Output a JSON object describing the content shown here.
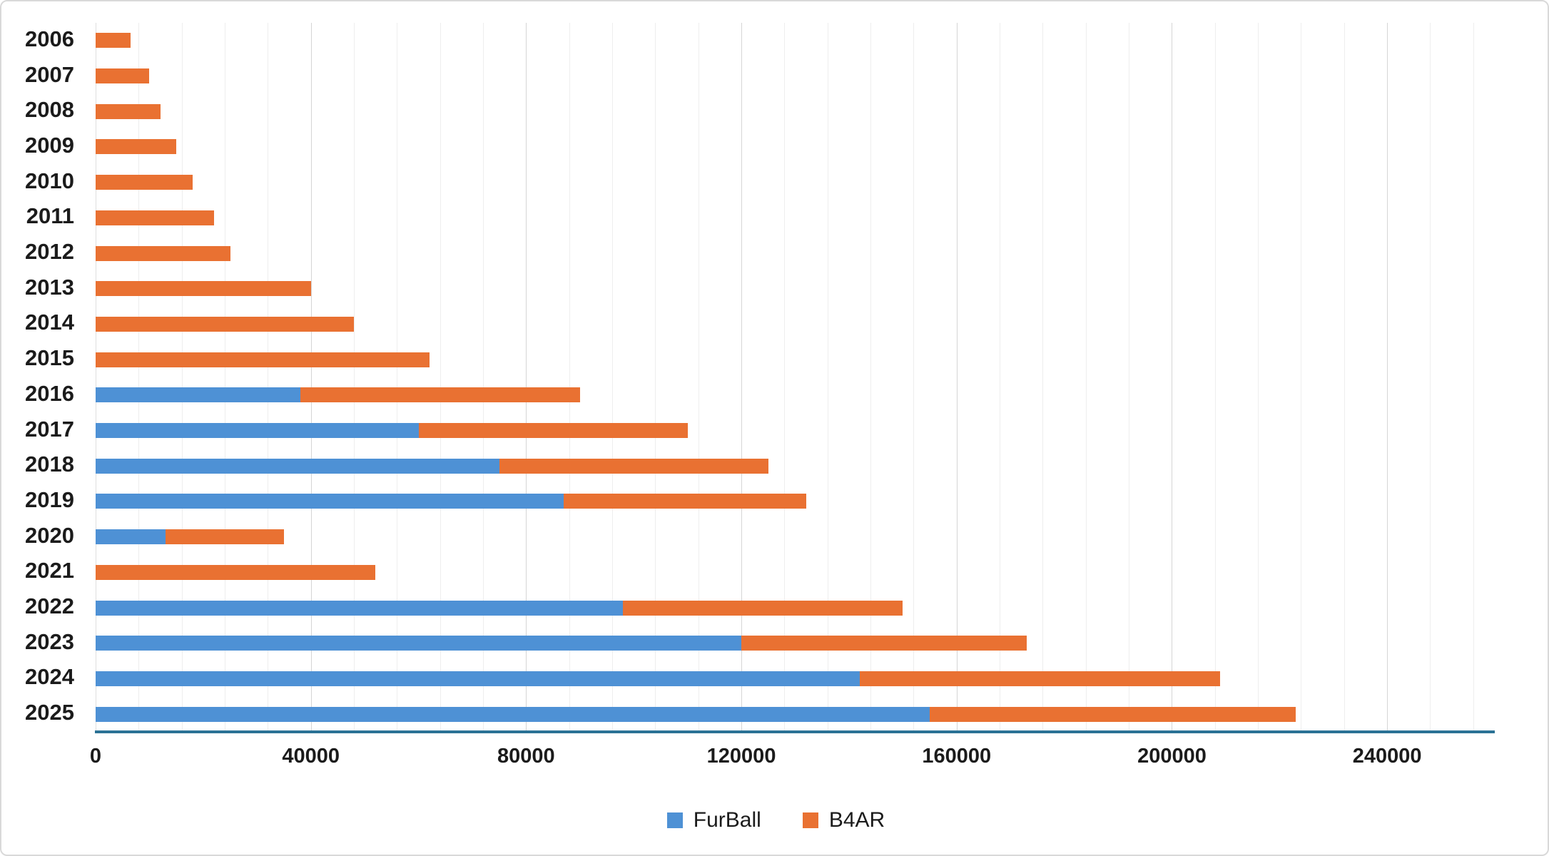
{
  "chart_data": {
    "type": "bar",
    "orientation": "horizontal",
    "stacked": true,
    "title": "",
    "xlabel": "",
    "ylabel": "",
    "grid": true,
    "legend_position": "bottom",
    "categories": [
      "2006",
      "2007",
      "2008",
      "2009",
      "2010",
      "2011",
      "2012",
      "2013",
      "2014",
      "2015",
      "2016",
      "2017",
      "2018",
      "2019",
      "2020",
      "2021",
      "2022",
      "2023",
      "2024",
      "2025"
    ],
    "series": [
      {
        "name": "FurBall",
        "color": "#4e91d5",
        "values": [
          0,
          0,
          0,
          0,
          0,
          0,
          0,
          0,
          0,
          0,
          38000,
          60000,
          75000,
          87000,
          13000,
          0,
          98000,
          120000,
          142000,
          155000
        ]
      },
      {
        "name": "B4AR",
        "color": "#e97132",
        "values": [
          6500,
          10000,
          12000,
          15000,
          18000,
          22000,
          25000,
          40000,
          48000,
          62000,
          52000,
          50000,
          50000,
          45000,
          22000,
          52000,
          52000,
          53000,
          67000,
          68000
        ]
      }
    ],
    "x_axis": {
      "min": 0,
      "max": 260000,
      "major_tick_unit": 40000,
      "minor_gridline_unit": 8000,
      "tick_labels": [
        "0",
        "40000",
        "80000",
        "120000",
        "160000",
        "200000",
        "240000"
      ]
    },
    "colors": {
      "axis_line": "#2b7295",
      "major_gridline": "#d5d5d5",
      "minor_gridline": "#eeeeee",
      "text": "#1b1b1b",
      "background": "#ffffff"
    }
  }
}
